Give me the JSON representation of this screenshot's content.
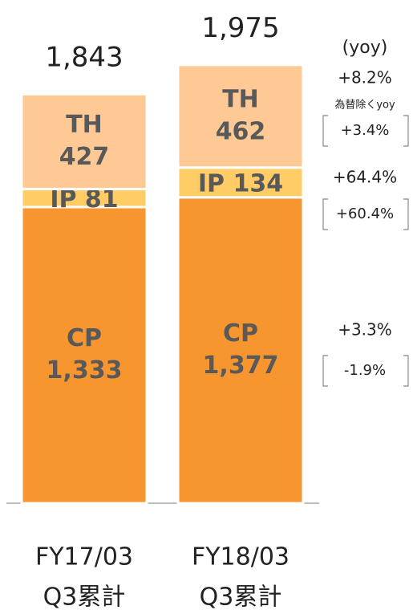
{
  "chart_data": {
    "type": "stacked_bar",
    "categories": [
      [
        "FY17/03",
        "Q3累計"
      ],
      [
        "FY18/03",
        "Q3累計"
      ]
    ],
    "totals": [
      1843,
      1975
    ],
    "total_labels": [
      "1,843",
      "1,975"
    ],
    "ylim": [
      0,
      2265
    ],
    "yoy_label": "(yoy)",
    "ex_fx_label": "為替除くyoy",
    "series": [
      {
        "name": "CP",
        "color": "#f7962e",
        "values": [
          1333,
          1377
        ],
        "value_labels": [
          "1,333",
          "1,377"
        ],
        "yoy": "+3.3%",
        "yoy_ex_fx": "-1.9%"
      },
      {
        "name": "IP",
        "color": "#ffcc66",
        "values": [
          81,
          134
        ],
        "yoy": "+64.4%",
        "yoy_ex_fx": "+60.4%"
      },
      {
        "name": "TH",
        "color": "#ffc996",
        "values": [
          427,
          462
        ],
        "yoy": "+8.2%",
        "yoy_ex_fx": "+3.4%"
      }
    ]
  }
}
